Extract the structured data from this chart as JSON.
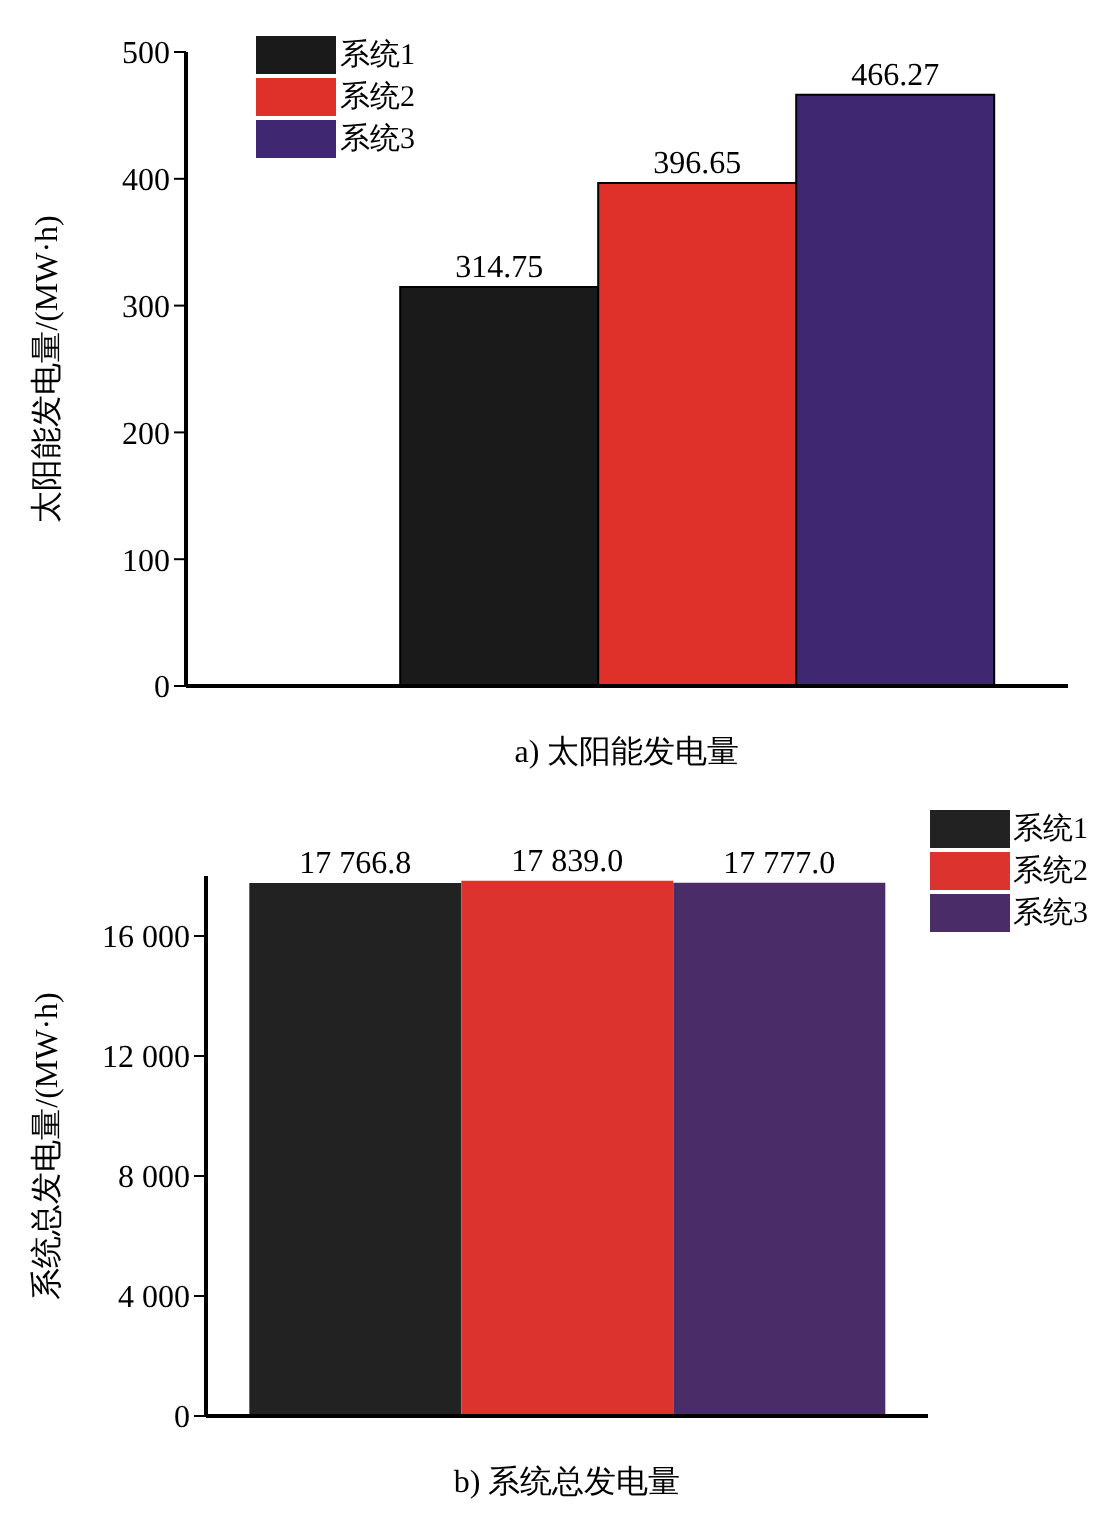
{
  "chart_data": [
    {
      "type": "bar",
      "xlabel": "a) 太阳能发电量",
      "ylabel": "太阳能发电量/(MW·h)",
      "categories": [
        null
      ],
      "series": [
        {
          "name": "系统1",
          "color": "#1a1a1a",
          "values": [
            314.75
          ]
        },
        {
          "name": "系统2",
          "color": "#e0302a",
          "values": [
            396.65
          ]
        },
        {
          "name": "系统3",
          "color": "#3f2772",
          "values": [
            466.27
          ]
        }
      ],
      "ylim": [
        0,
        500
      ],
      "yticks": [
        0,
        100,
        200,
        300,
        400,
        500
      ],
      "data_labels": true,
      "legend": "top left",
      "grid": false
    },
    {
      "type": "bar",
      "xlabel": "b) 系统总发电量",
      "ylabel": "系统总发电量/(MW·h)",
      "categories": [
        null
      ],
      "series": [
        {
          "name": "系统1",
          "color": "#222222",
          "values": [
            17766.8
          ],
          "value_labels": [
            "17 766.8"
          ]
        },
        {
          "name": "系统2",
          "color": "#dd332e",
          "values": [
            17839.0
          ],
          "value_labels": [
            "17 839.0"
          ]
        },
        {
          "name": "系统3",
          "color": "#4a2d68",
          "values": [
            17777.0
          ],
          "value_labels": [
            "17 777.0"
          ]
        }
      ],
      "ylim": [
        0,
        18000
      ],
      "yticks": [
        0,
        {
          "value": 4000,
          "label": "4 000"
        },
        {
          "value": 8000,
          "label": "8 000"
        },
        {
          "value": 12000,
          "label": "12 000"
        },
        {
          "value": 16000,
          "label": "16 000"
        }
      ],
      "legend": "right",
      "grid": false
    }
  ]
}
